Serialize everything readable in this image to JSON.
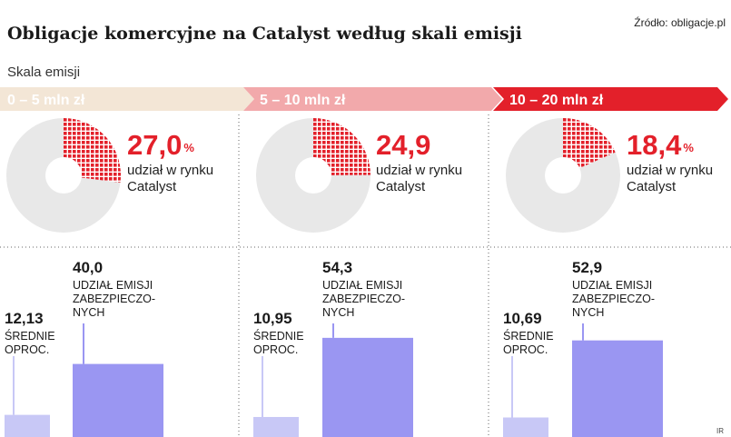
{
  "title": "Obligacje komercyjne na Catalyst według skali emisji",
  "source": "Źródło: obligacje.pl",
  "scale_label": "Skala emisji",
  "credit": "IR",
  "colors": {
    "band1": "#f3e6d6",
    "band2": "#f2a9ab",
    "band3": "#e3202a",
    "pie_grey": "#e8e8e8",
    "pie_red": "#e3202a",
    "bar_light": "#c8c8f6",
    "bar_dark": "#9a96f2",
    "accent": "#e3202a"
  },
  "chart_data": [
    {
      "type": "pie",
      "group": "0 – 5 mln zł",
      "share_label": "27,0",
      "share_value": 27.0,
      "unit": "%",
      "caption_line1": "udział w rynku",
      "caption_line2": "Catalyst"
    },
    {
      "type": "pie",
      "group": "5 – 10 mln zł",
      "share_label": "24,9",
      "share_value": 24.9,
      "unit": "",
      "caption_line1": "udział w rynku",
      "caption_line2": "Catalyst"
    },
    {
      "type": "pie",
      "group": "10 – 20 mln zł",
      "share_label": "18,4",
      "share_value": 18.4,
      "unit": "%",
      "caption_line1": "udział w rynku",
      "caption_line2": "Catalyst"
    },
    {
      "type": "bar",
      "categories": [
        "0 – 5 mln zł",
        "5 – 10 mln zł",
        "10 – 20 mln zł"
      ],
      "series": [
        {
          "name": "ŚREDNIE OPROC.",
          "label_lines": [
            "ŚREDNIE",
            "OPROC."
          ],
          "values": [
            12.13,
            10.95,
            10.69
          ],
          "value_labels": [
            "12,13",
            "10,95",
            "10,69"
          ]
        },
        {
          "name": "UDZIAŁ EMISJI ZABEZPIECZONYCH",
          "label_lines": [
            "UDZIAŁ EMISJI",
            "ZABEZPIECZO-",
            "NYCH"
          ],
          "values": [
            40.0,
            54.3,
            52.9
          ],
          "value_labels": [
            "40,0",
            "54,3",
            "52,9"
          ]
        }
      ]
    }
  ]
}
